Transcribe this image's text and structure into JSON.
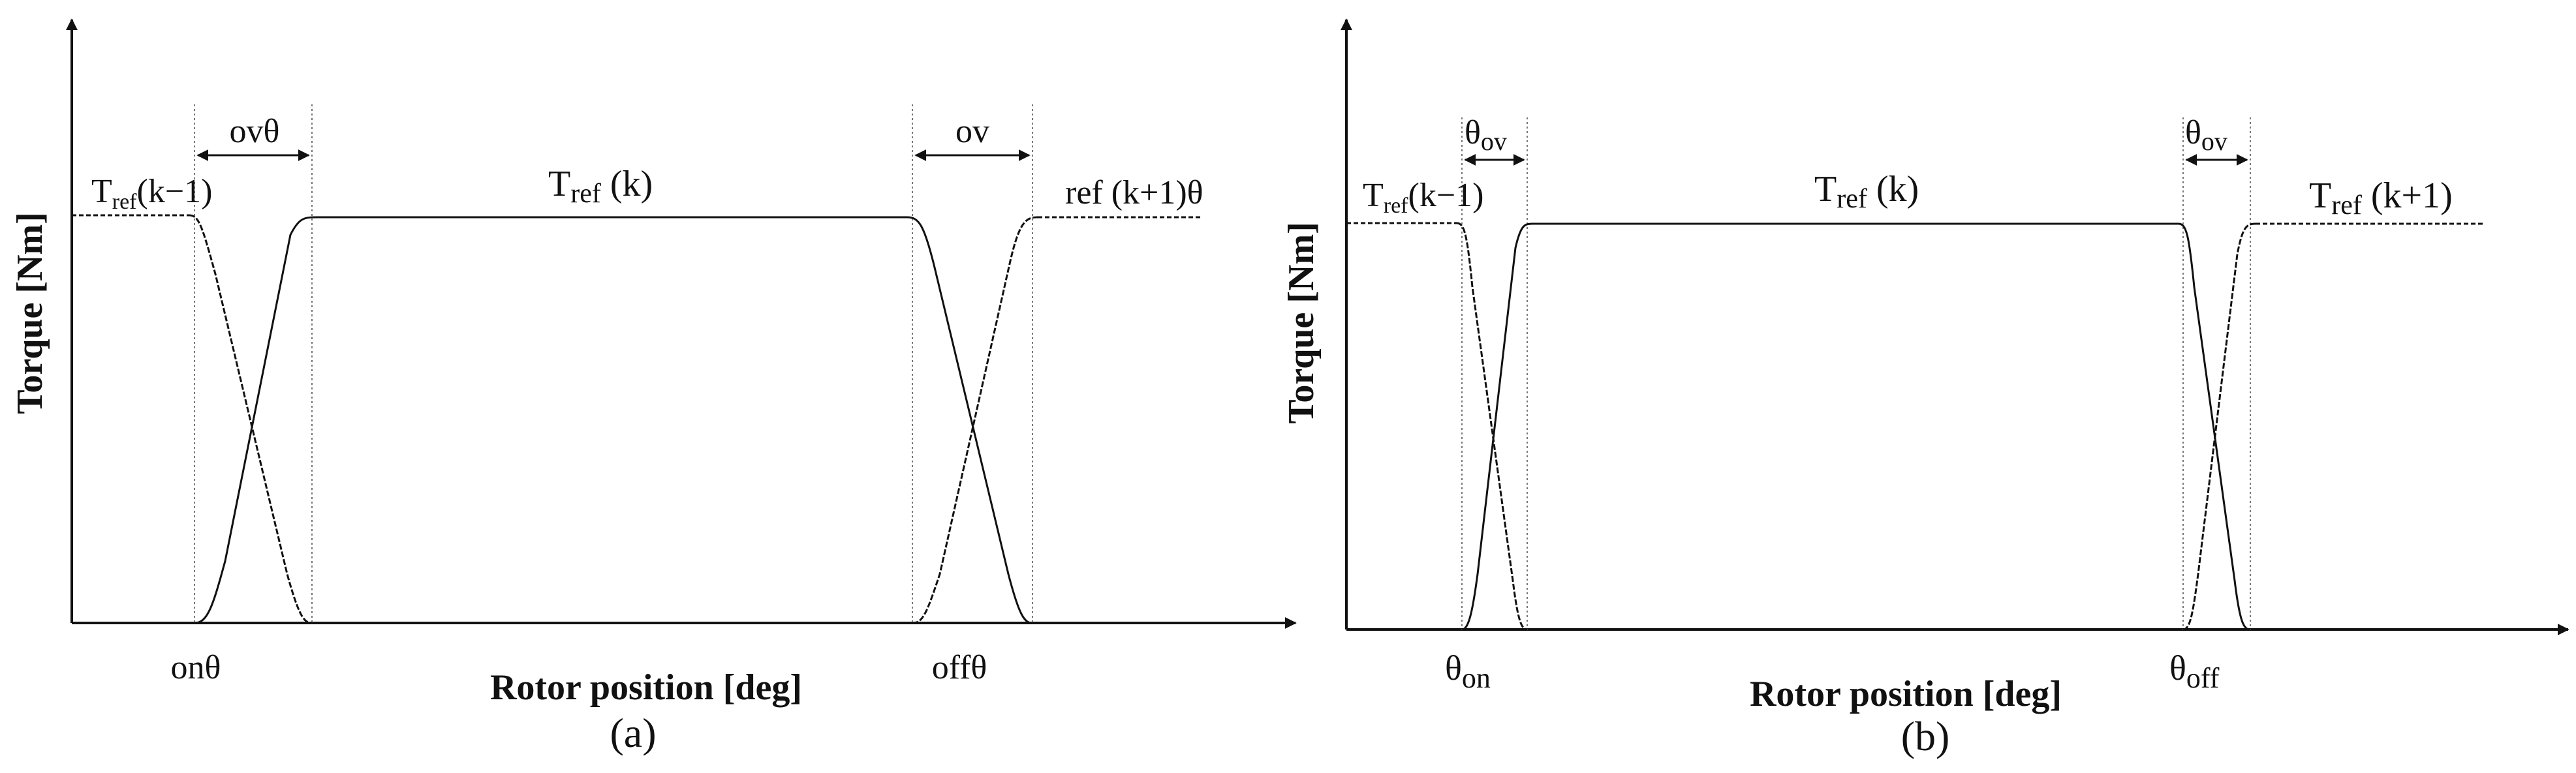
{
  "panels": [
    {
      "caption": "(a)",
      "y_axis_label": "Torque [Nm]",
      "x_axis_label": "Rotor position [deg]",
      "labels": {
        "t_prev_main": "T",
        "t_prev_sub": "ref",
        "t_prev_tail": "(k−1)",
        "t_cur_main": "T",
        "t_cur_sub": "ref",
        "t_cur_tail": " (k)",
        "t_next": "ref (k+1)θ",
        "ov_left": "ovθ",
        "ov_right": "ov",
        "on": "onθ",
        "off": "offθ"
      }
    },
    {
      "caption": "(b)",
      "y_axis_label": "Torque [Nm]",
      "x_axis_label": "Rotor position [deg]",
      "labels": {
        "t_prev_main": "T",
        "t_prev_sub": "ref",
        "t_prev_tail": "(k−1)",
        "t_cur_main": "T",
        "t_cur_sub": "ref",
        "t_cur_tail": " (k)",
        "t_next_main": "T",
        "t_next_sub": "ref",
        "t_next_tail": " (k+1)",
        "ov_left_main": "θ",
        "ov_left_sub": "ov",
        "ov_right_main": "θ",
        "ov_right_sub": "ov",
        "on_main": "θ",
        "on_sub": "on",
        "off_main": "θ",
        "off_sub": "off"
      }
    }
  ]
}
